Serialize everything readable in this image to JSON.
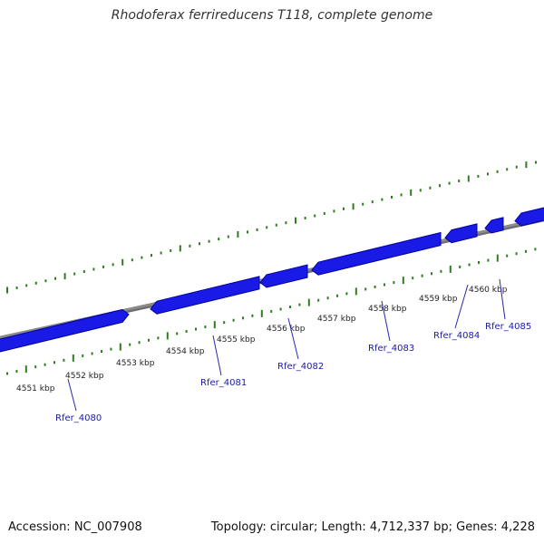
{
  "title": "Rhodoferax ferrireducens T118, complete genome",
  "footer": {
    "accession": "Accession: NC_007908",
    "summary": "Topology: circular; Length: 4,712,337 bp; Genes: 4,228"
  },
  "colors": {
    "gene_fill": "#1a1ae6",
    "gene_edge": "#0000a0",
    "backbone": "#8c8c8c",
    "ticks": "#2e7d1e",
    "label_text": "#1a1aa6"
  },
  "scale_labels": [
    "4551 kbp",
    "4552 kbp",
    "4553 kbp",
    "4554 kbp",
    "4555 kbp",
    "4556 kbp",
    "4557 kbp",
    "4558 kbp",
    "4559 kbp",
    "4560 kbp"
  ],
  "genes": [
    {
      "name": "Rfer_4080"
    },
    {
      "name": "Rfer_4081"
    },
    {
      "name": "Rfer_4082"
    },
    {
      "name": "Rfer_4083"
    },
    {
      "name": "Rfer_4084"
    },
    {
      "name": "Rfer_4085"
    }
  ]
}
